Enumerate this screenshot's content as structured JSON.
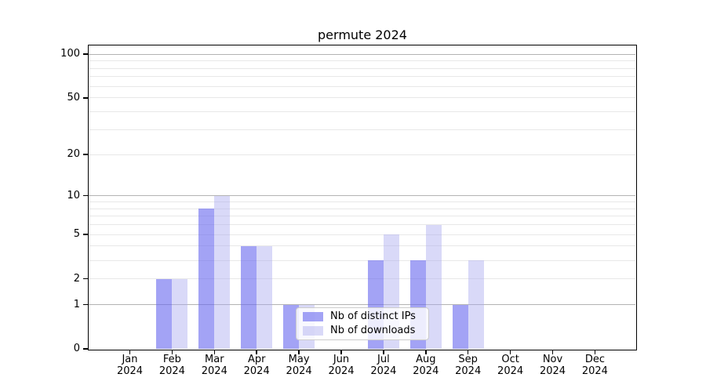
{
  "chart_data": {
    "type": "bar",
    "title": "permute 2024",
    "x_categories": [
      "Jan",
      "Feb",
      "Mar",
      "Apr",
      "May",
      "Jun",
      "Jul",
      "Aug",
      "Sep",
      "Oct",
      "Nov",
      "Dec"
    ],
    "x_year": "2024",
    "series": [
      {
        "name": "Nb of distinct IPs",
        "color": "#6666ee",
        "alpha": 0.6,
        "values": [
          0,
          2,
          8,
          4,
          1,
          0,
          3,
          3,
          1,
          0,
          0,
          0
        ]
      },
      {
        "name": "Nb of downloads",
        "color": "#aaaaf0",
        "alpha": 0.45,
        "values": [
          0,
          2,
          10,
          4,
          1,
          0,
          5,
          6,
          3,
          0,
          0,
          0
        ]
      }
    ],
    "yscale": "log1p",
    "ylim": [
      0,
      115
    ],
    "ytick_values": [
      0,
      1,
      2,
      5,
      10,
      20,
      50,
      100
    ],
    "grid_major_values": [
      1,
      10,
      100
    ],
    "grid_minor_values": [
      2,
      3,
      4,
      5,
      6,
      7,
      8,
      9,
      20,
      30,
      40,
      50,
      60,
      70,
      80,
      90
    ],
    "grid_major_color": "#b3b3b3",
    "grid_minor_color": "#e8e8e8",
    "legend_position": "lower center-right",
    "xlabel": "",
    "ylabel": ""
  }
}
